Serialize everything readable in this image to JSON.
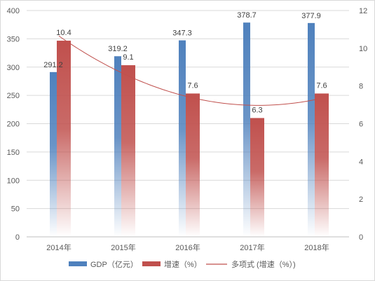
{
  "chart_data": {
    "type": "bar",
    "categories": [
      "2014年",
      "2015年",
      "2016年",
      "2017年",
      "2018年"
    ],
    "series": [
      {
        "name": "GDP（亿元）",
        "axis": "left",
        "values": [
          291.2,
          319.2,
          347.3,
          378.7,
          377.9
        ],
        "data_labels": [
          "291.2",
          "319.2",
          "347.3",
          "378.7",
          "377.9"
        ],
        "color": "#4f81bd"
      },
      {
        "name": "增速（%）",
        "axis": "right",
        "values": [
          10.4,
          9.1,
          7.6,
          6.3,
          7.6
        ],
        "data_labels": [
          "10.4",
          "9.1",
          "7.6",
          "6.3",
          "7.6"
        ],
        "color": "#c0504d"
      }
    ],
    "trendline": {
      "name": "多项式 (增速（%）)",
      "type": "polynomial",
      "of_series": "增速（%）",
      "color": "#c0504d"
    },
    "y_left": {
      "ylim": [
        0,
        400
      ],
      "ticks": [
        "0",
        "50",
        "100",
        "150",
        "200",
        "250",
        "300",
        "350",
        "400"
      ]
    },
    "y_right": {
      "ylim": [
        0,
        12
      ],
      "ticks": [
        "0",
        "2",
        "4",
        "6",
        "8",
        "10",
        "12"
      ]
    },
    "grid": true,
    "legend_position": "bottom"
  }
}
